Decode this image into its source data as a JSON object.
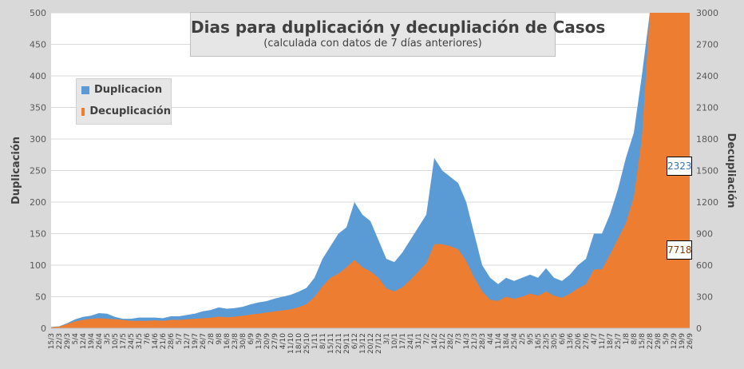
{
  "colors": {
    "duplicacion": "#5b9bd5",
    "decuplicacion": "#ed7d31",
    "grid": "#d9d9d9",
    "plot_bg": "#ffffff"
  },
  "chart_data": {
    "type": "area",
    "title": "Dias para duplicación y decupliación de Casos",
    "subtitle": "(calculada con datos de 7 días anteriores)",
    "ylabel": "Duplicación",
    "y2label": "Decupliación",
    "ylim": [
      0,
      500
    ],
    "y2lim": [
      0,
      3000
    ],
    "yticks": [
      "0",
      "50",
      "100",
      "150",
      "200",
      "250",
      "300",
      "350",
      "400",
      "450",
      "500"
    ],
    "y2ticks": [
      "0",
      "300",
      "600",
      "900",
      "1200",
      "1500",
      "1800",
      "2100",
      "2400",
      "2700",
      "3000"
    ],
    "grid": true,
    "legend_position": "upper-left",
    "categories": [
      "15/3",
      "22/3",
      "29/3",
      "5/4",
      "12/4",
      "19/4",
      "26/4",
      "3/5",
      "10/5",
      "17/5",
      "24/5",
      "31/5",
      "7/6",
      "14/6",
      "21/6",
      "28/6",
      "5/7",
      "12/7",
      "19/7",
      "26/7",
      "2/8",
      "9/8",
      "16/8",
      "23/8",
      "30/8",
      "6/9",
      "13/9",
      "20/9",
      "27/9",
      "4/10",
      "11/10",
      "18/10",
      "25/10",
      "1/11",
      "8/11",
      "15/11",
      "22/11",
      "29/11",
      "6/12",
      "13/12",
      "20/12",
      "27/12",
      "3/1",
      "10/1",
      "17/1",
      "24/1",
      "31/1",
      "7/2",
      "14/2",
      "21/2",
      "28/2",
      "7/3",
      "14/3",
      "21/3",
      "28/3",
      "4/4",
      "11/4",
      "18/4",
      "25/4",
      "2/5",
      "9/5",
      "16/5",
      "23/5",
      "30/5",
      "6/6",
      "13/6",
      "20/6",
      "27/6",
      "4/7",
      "11/7",
      "18/7",
      "25/7",
      "1/8",
      "8/8",
      "15/8",
      "22/8",
      "29/8",
      "5/9",
      "12/9",
      "19/9",
      "26/9"
    ],
    "series": [
      {
        "name": "Duplicacion",
        "axis": "left",
        "values": [
          2,
          3,
          8,
          14,
          18,
          20,
          24,
          23,
          18,
          15,
          15,
          17,
          17,
          17,
          16,
          19,
          19,
          21,
          23,
          27,
          29,
          33,
          31,
          32,
          34,
          38,
          41,
          43,
          47,
          50,
          53,
          58,
          64,
          80,
          110,
          130,
          150,
          160,
          200,
          180,
          170,
          140,
          110,
          105,
          120,
          140,
          160,
          180,
          270,
          250,
          240,
          230,
          200,
          150,
          100,
          80,
          70,
          80,
          75,
          80,
          85,
          80,
          95,
          80,
          75,
          85,
          100,
          110,
          150,
          150,
          180,
          220,
          270,
          310,
          400,
          500,
          500,
          500,
          500,
          500,
          500
        ]
      },
      {
        "name": "Decuplicación",
        "axis": "right",
        "values": [
          10,
          15,
          40,
          65,
          80,
          90,
          95,
          90,
          85,
          80,
          70,
          70,
          70,
          75,
          70,
          80,
          80,
          85,
          90,
          95,
          100,
          110,
          105,
          110,
          120,
          130,
          140,
          150,
          160,
          170,
          180,
          200,
          230,
          300,
          400,
          480,
          520,
          580,
          650,
          580,
          540,
          480,
          380,
          350,
          390,
          460,
          540,
          620,
          800,
          800,
          780,
          750,
          640,
          480,
          350,
          270,
          260,
          300,
          280,
          300,
          330,
          310,
          350,
          310,
          290,
          330,
          380,
          420,
          560,
          560,
          700,
          850,
          1000,
          1250,
          1800,
          3000,
          3000,
          3000,
          3000,
          3000,
          3000
        ]
      }
    ],
    "annotations": [
      {
        "series": "Duplicacion",
        "label": "2323"
      },
      {
        "series": "Decuplicación",
        "label": "7718"
      }
    ]
  }
}
